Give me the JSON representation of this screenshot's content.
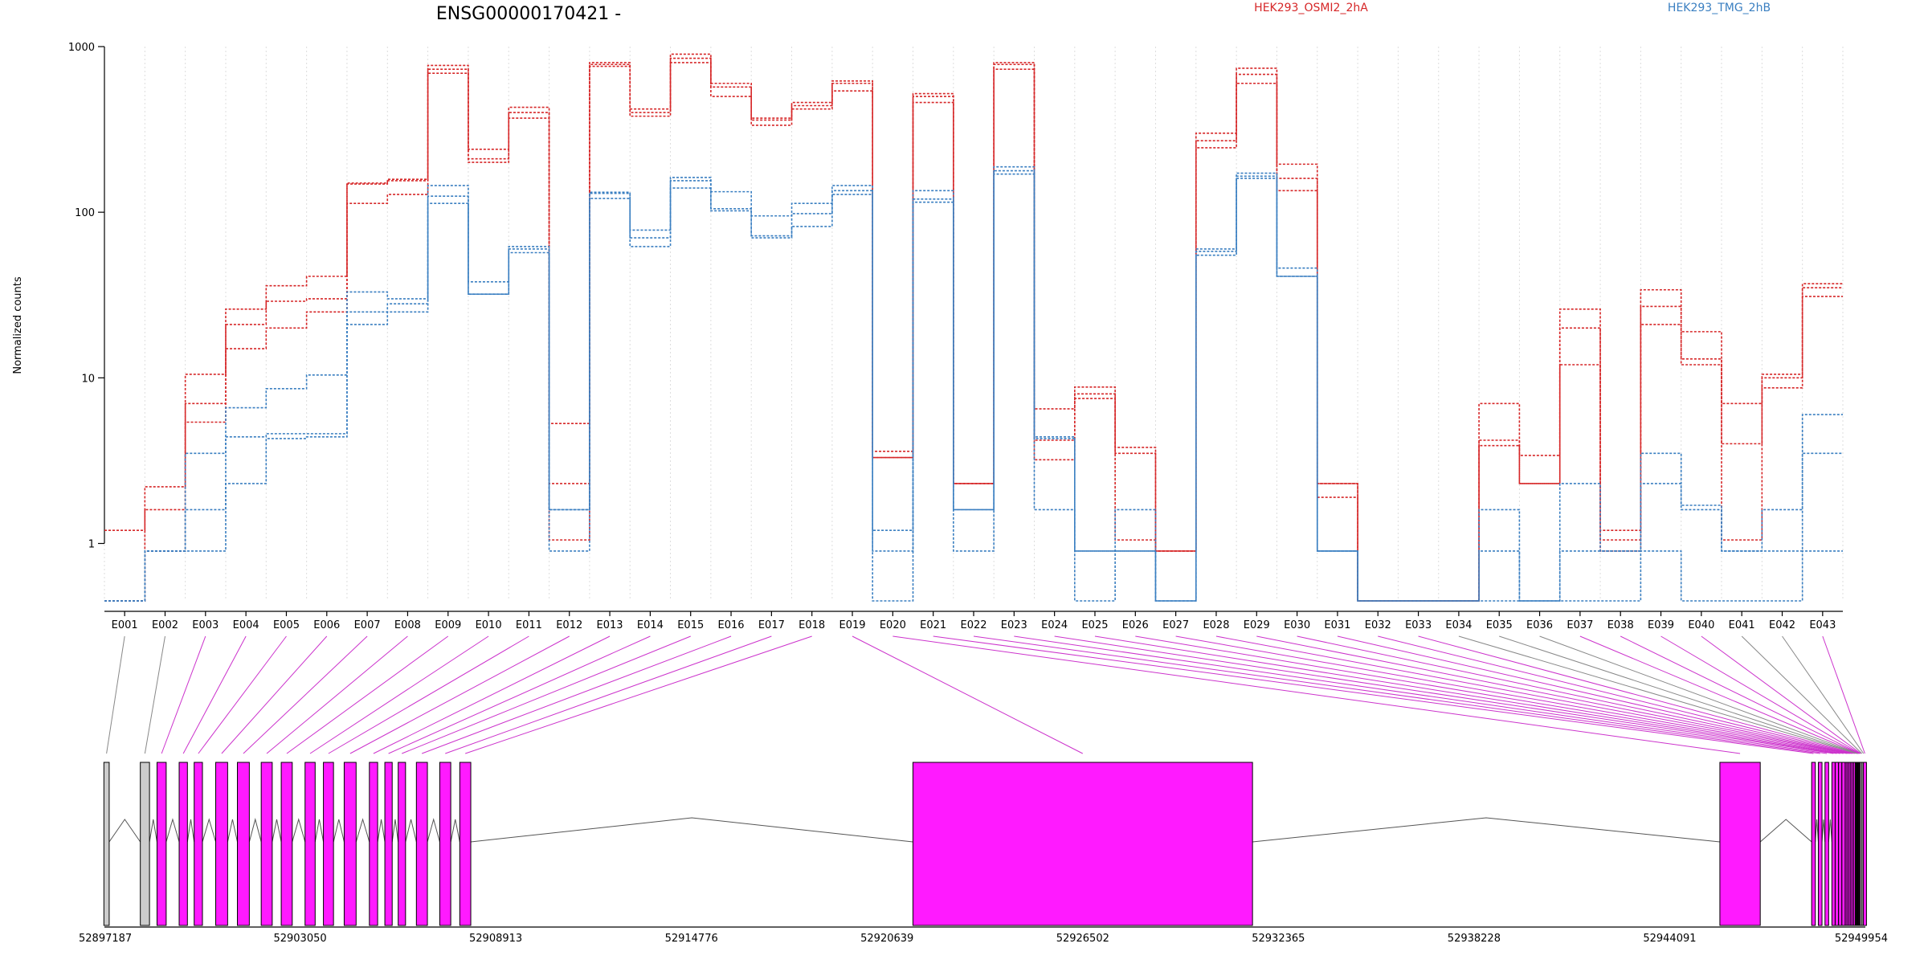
{
  "chart_data": {
    "type": "line",
    "title": "ENSG00000170421 -",
    "ylabel": "Normalized counts",
    "xlabel": "",
    "y_scale": "log",
    "ylim": [
      0.45,
      1000
    ],
    "y_ticks": [
      1,
      10,
      100,
      1000
    ],
    "y_tick_labels": [
      "1",
      "10",
      "100",
      "1000"
    ],
    "grid": "vertical dotted",
    "legend_position": "top",
    "categories": [
      "E001",
      "E002",
      "E003",
      "E004",
      "E005",
      "E006",
      "E007",
      "E008",
      "E009",
      "E010",
      "E011",
      "E012",
      "E013",
      "E014",
      "E015",
      "E016",
      "E017",
      "E018",
      "E019",
      "E020",
      "E021",
      "E022",
      "E023",
      "E024",
      "E025",
      "E026",
      "E027",
      "E028",
      "E029",
      "E030",
      "E031",
      "E032",
      "E033",
      "E034",
      "E035",
      "E036",
      "E037",
      "E038",
      "E039",
      "E040",
      "E041",
      "E042",
      "E043"
    ],
    "series": [
      {
        "name": "HEK293_OSMI2_2hA",
        "color": "#d62728",
        "values": [
          1.2,
          2.2,
          10.5,
          26,
          36,
          41,
          150,
          158,
          770,
          240,
          430,
          5.3,
          800,
          420,
          900,
          600,
          370,
          460,
          620,
          3.6,
          520,
          2.3,
          800,
          6.5,
          8.8,
          3.8,
          0.9,
          300,
          740,
          195,
          2.3,
          0.45,
          0.45,
          0.45,
          7,
          3.4,
          26,
          1.2,
          34,
          19,
          7,
          10.5,
          37
        ]
      },
      {
        "name": "",
        "color": "#d62728",
        "values": [
          0.45,
          1.6,
          7,
          21,
          29,
          30,
          148,
          155,
          730,
          210,
          400,
          2.3,
          780,
          400,
          850,
          570,
          360,
          440,
          600,
          3.3,
          500,
          2.3,
          780,
          4.2,
          8,
          3.5,
          0.9,
          270,
          680,
          160,
          2.3,
          0.45,
          0.45,
          0.45,
          4.2,
          2.3,
          20,
          1.05,
          27,
          13,
          4,
          10,
          35
        ]
      },
      {
        "name": "",
        "color": "#d62728",
        "values": [
          0.45,
          0.9,
          5.4,
          15,
          20,
          25,
          113,
          128,
          690,
          200,
          370,
          1.05,
          760,
          380,
          800,
          500,
          335,
          420,
          540,
          3.3,
          460,
          2.3,
          730,
          3.2,
          7.5,
          1.05,
          0.9,
          245,
          600,
          135,
          1.9,
          0.45,
          0.45,
          0.45,
          3.9,
          2.3,
          12,
          0.9,
          21,
          12,
          1.05,
          8.7,
          31
        ]
      },
      {
        "name": "HEK293_TMG_2hB",
        "color": "#3a7fc1",
        "values": [
          0.45,
          0.9,
          3.5,
          6.6,
          8.6,
          10.4,
          33,
          30,
          145,
          38,
          62,
          1.6,
          132,
          78,
          162,
          133,
          95,
          113,
          145,
          1.2,
          135,
          1.6,
          188,
          4.4,
          0.9,
          1.6,
          0.45,
          60,
          172,
          46,
          0.9,
          0.45,
          0.45,
          0.45,
          1.6,
          0.45,
          2.3,
          0.9,
          3.5,
          1.7,
          0.9,
          1.6,
          6
        ]
      },
      {
        "name": "",
        "color": "#3a7fc1",
        "values": [
          0.45,
          0.9,
          1.6,
          4.4,
          4.6,
          4.6,
          25,
          28,
          125,
          32,
          60,
          1.6,
          130,
          70,
          155,
          105,
          72,
          98,
          135,
          0.9,
          120,
          1.6,
          178,
          4.3,
          0.9,
          0.9,
          0.45,
          58,
          165,
          41,
          0.9,
          0.45,
          0.45,
          0.45,
          0.9,
          0.45,
          0.9,
          0.9,
          2.3,
          1.6,
          0.9,
          0.9,
          3.5
        ]
      },
      {
        "name": "",
        "color": "#3a7fc1",
        "values": [
          0.45,
          0.9,
          0.9,
          2.3,
          4.3,
          4.4,
          21,
          25,
          113,
          32,
          57,
          0.9,
          121,
          62,
          140,
          102,
          70,
          82,
          128,
          0.45,
          115,
          0.9,
          170,
          1.6,
          0.45,
          0.9,
          0.45,
          55,
          160,
          41,
          0.9,
          0.45,
          0.45,
          0.45,
          0.45,
          0.45,
          0.45,
          0.45,
          0.9,
          0.45,
          0.45,
          0.45,
          0.9
        ]
      }
    ],
    "gene_model": {
      "coordinate_range": [
        52897187,
        52949954
      ],
      "coordinate_labels": [
        "52897187",
        "52903050",
        "52908913",
        "52914776",
        "52920639",
        "52926502",
        "52932365",
        "52938228",
        "52944091",
        "52949954"
      ],
      "exon_colors": {
        "differential": "#ff1aff",
        "other": "#cccccc",
        "outline": "#000000"
      },
      "exon_genomic_positions": [
        52897250,
        52898400,
        52898900,
        52899550,
        52900000,
        52900700,
        52901350,
        52902050,
        52902650,
        52903350,
        52903900,
        52904550,
        52905250,
        52905700,
        52906100,
        52906700,
        52907400,
        52908000,
        52926502,
        52946200,
        52948400,
        52948600,
        52948800,
        52949000,
        52949100,
        52949200,
        52949300,
        52949400,
        52949450,
        52949500,
        52949550,
        52949600,
        52949650,
        52949700,
        52949720,
        52949740,
        52949760,
        52949780,
        52949800,
        52949820,
        52949850,
        52949900,
        52949940
      ],
      "differential_exons": [
        "E003",
        "E004",
        "E005",
        "E006",
        "E007",
        "E008",
        "E009",
        "E010",
        "E011",
        "E012",
        "E013",
        "E014",
        "E015",
        "E016",
        "E017",
        "E018",
        "E019",
        "E020",
        "E021",
        "E022",
        "E023",
        "E024",
        "E025",
        "E026",
        "E027",
        "E028",
        "E029",
        "E030",
        "E031",
        "E032",
        "E033",
        "E037",
        "E038",
        "E039",
        "E040",
        "E043"
      ]
    }
  }
}
